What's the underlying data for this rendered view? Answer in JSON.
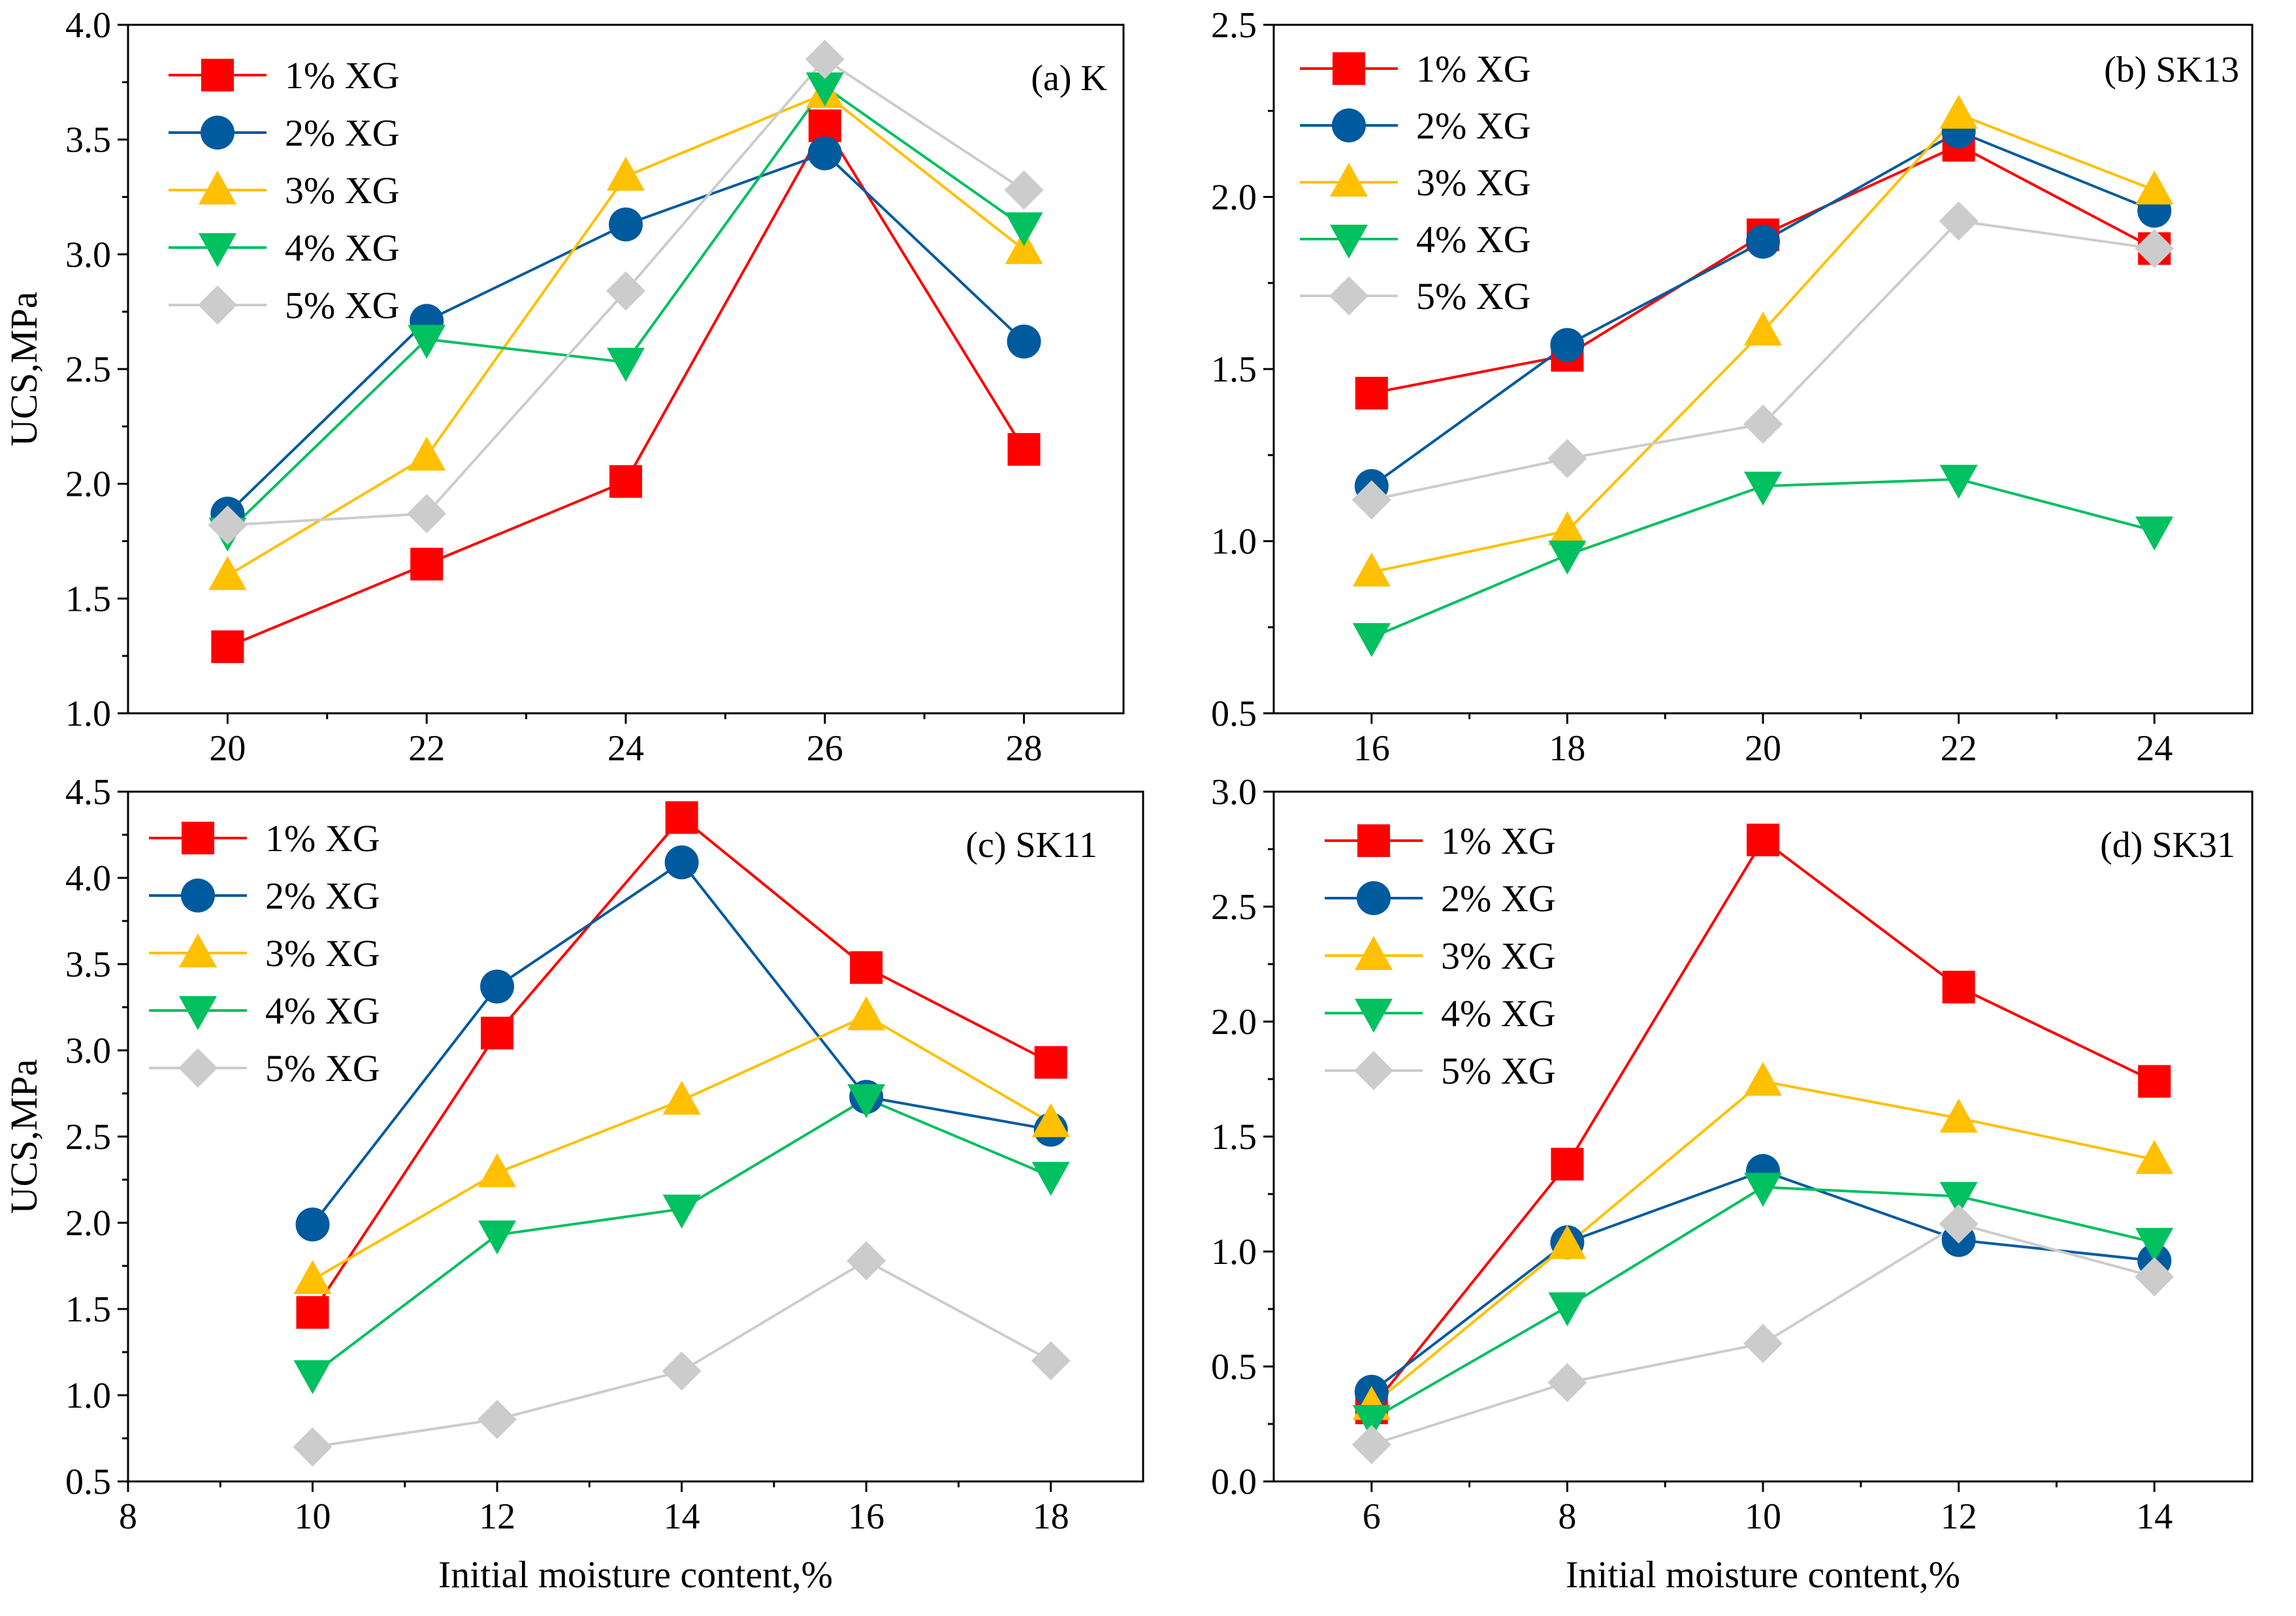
{
  "figure": {
    "xlabel_shared": "Initial moisture content,%"
  },
  "legend_labels": [
    "1% XG",
    "2% XG",
    "3% XG",
    "4% XG",
    "5% XG"
  ],
  "colors": {
    "xg1": "#ff0000",
    "xg2": "#005a9e",
    "xg3": "#ffc000",
    "xg4": "#00c060",
    "xg5": "#cccccc"
  },
  "chart_data": [
    {
      "type": "line",
      "panel_label": "(a) K",
      "ylabel": "UCS,MPa",
      "xlabel": "",
      "xlim": [
        19.0,
        29.0
      ],
      "ylim": [
        1.0,
        4.0
      ],
      "xticks": [
        20,
        22,
        24,
        26,
        28
      ],
      "yticks": [
        1.0,
        1.5,
        2.0,
        2.5,
        3.0,
        3.5,
        4.0
      ],
      "ytick_labels": [
        "1.0",
        "1.5",
        "2.0",
        "2.5",
        "3.0",
        "3.5",
        "4.0"
      ],
      "x": [
        20,
        22,
        24,
        26,
        28
      ],
      "series": [
        {
          "name": "1% XG",
          "values": [
            1.29,
            1.65,
            2.01,
            3.56,
            2.15
          ]
        },
        {
          "name": "2% XG",
          "values": [
            1.87,
            2.71,
            3.13,
            3.44,
            2.62
          ]
        },
        {
          "name": "3% XG",
          "values": [
            1.6,
            2.12,
            3.34,
            3.7,
            3.02
          ]
        },
        {
          "name": "4% XG",
          "values": [
            1.79,
            2.63,
            2.53,
            3.73,
            3.12
          ]
        },
        {
          "name": "5% XG",
          "values": [
            1.82,
            1.87,
            2.84,
            3.85,
            3.28
          ]
        }
      ]
    },
    {
      "type": "line",
      "panel_label": "(b) SK13",
      "ylabel": "",
      "xlabel": "",
      "xlim": [
        15.0,
        25.0
      ],
      "ylim": [
        0.5,
        2.5
      ],
      "xticks": [
        16,
        18,
        20,
        22,
        24
      ],
      "yticks": [
        0.5,
        1.0,
        1.5,
        2.0,
        2.5
      ],
      "ytick_labels": [
        "0.5",
        "1.0",
        "1.5",
        "2.0",
        "2.5"
      ],
      "x": [
        16,
        18,
        20,
        22,
        24
      ],
      "series": [
        {
          "name": "1% XG",
          "values": [
            1.43,
            1.54,
            1.89,
            2.15,
            1.85
          ]
        },
        {
          "name": "2% XG",
          "values": [
            1.16,
            1.57,
            1.87,
            2.19,
            1.96
          ]
        },
        {
          "name": "3% XG",
          "values": [
            0.91,
            1.03,
            1.61,
            2.24,
            2.02
          ]
        },
        {
          "name": "4% XG",
          "values": [
            0.72,
            0.96,
            1.16,
            1.18,
            1.03
          ]
        },
        {
          "name": "5% XG",
          "values": [
            1.12,
            1.24,
            1.34,
            1.93,
            1.85
          ]
        }
      ]
    },
    {
      "type": "line",
      "panel_label": "(c) SK11",
      "ylabel": "UCS,MPa",
      "xlabel": "Initial moisture content,%",
      "xlim": [
        8.0,
        19.0
      ],
      "ylim": [
        0.5,
        4.5
      ],
      "xticks": [
        8,
        10,
        12,
        14,
        16,
        18
      ],
      "yticks": [
        0.5,
        1.0,
        1.5,
        2.0,
        2.5,
        3.0,
        3.5,
        4.0,
        4.5
      ],
      "ytick_labels": [
        "0.5",
        "1.0",
        "1.5",
        "2.0",
        "2.5",
        "3.0",
        "3.5",
        "4.0",
        "4.5"
      ],
      "x": [
        10,
        12,
        14,
        16,
        18
      ],
      "series": [
        {
          "name": "1% XG",
          "values": [
            1.48,
            3.1,
            4.35,
            3.48,
            2.93
          ]
        },
        {
          "name": "2% XG",
          "values": [
            1.99,
            3.37,
            4.09,
            2.73,
            2.54
          ]
        },
        {
          "name": "3% XG",
          "values": [
            1.67,
            2.29,
            2.71,
            3.2,
            2.58
          ]
        },
        {
          "name": "4% XG",
          "values": [
            1.12,
            1.93,
            2.08,
            2.72,
            2.27
          ]
        },
        {
          "name": "5% XG",
          "values": [
            0.7,
            0.86,
            1.14,
            1.78,
            1.2
          ]
        }
      ]
    },
    {
      "type": "line",
      "panel_label": "(d) SK31",
      "ylabel": "",
      "xlabel": "Initial moisture content,%",
      "xlim": [
        5.0,
        15.0
      ],
      "ylim": [
        0.0,
        3.0
      ],
      "xticks": [
        6,
        8,
        10,
        12,
        14
      ],
      "yticks": [
        0.0,
        0.5,
        1.0,
        1.5,
        2.0,
        2.5,
        3.0
      ],
      "ytick_labels": [
        "0.0",
        "0.5",
        "1.0",
        "1.5",
        "2.0",
        "2.5",
        "3.0"
      ],
      "x": [
        6,
        8,
        10,
        12,
        14
      ],
      "series": [
        {
          "name": "1% XG",
          "values": [
            0.32,
            1.38,
            2.79,
            2.15,
            1.74
          ]
        },
        {
          "name": "2% XG",
          "values": [
            0.39,
            1.04,
            1.35,
            1.05,
            0.96
          ]
        },
        {
          "name": "3% XG",
          "values": [
            0.33,
            1.03,
            1.74,
            1.58,
            1.4
          ]
        },
        {
          "name": "4% XG",
          "values": [
            0.27,
            0.76,
            1.28,
            1.24,
            1.04
          ]
        },
        {
          "name": "5% XG",
          "values": [
            0.16,
            0.43,
            0.6,
            1.12,
            0.89
          ]
        }
      ]
    }
  ]
}
